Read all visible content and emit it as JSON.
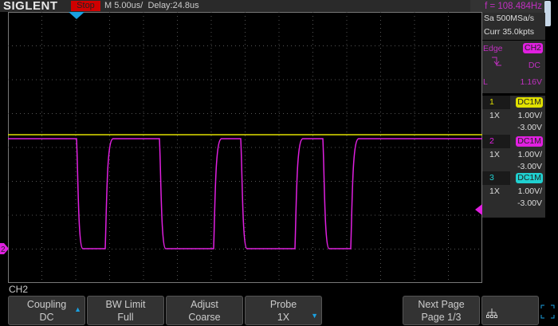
{
  "header": {
    "logo": "SIGLENT",
    "run_state": "Stop",
    "timebase": "M 5.00us/",
    "delay": "Delay:24.8us"
  },
  "measure": {
    "frequency": "f = 108.484Hz"
  },
  "acquire": {
    "sample_rate": "Sa 500MSa/s",
    "memory": "Curr 35.0kpts"
  },
  "trigger": {
    "type": "Edge",
    "source": "CH2",
    "slope_icon": "falling-edge-icon",
    "coupling": "DC",
    "level_label": "L",
    "level": "1.16V"
  },
  "channels": [
    {
      "num": "1",
      "coupling": "DC1M",
      "probe": "1X",
      "scale": "1.00V/",
      "offset": "-3.00V",
      "color": "#e0e000"
    },
    {
      "num": "2",
      "coupling": "DC1M",
      "probe": "1X",
      "scale": "1.00V/",
      "offset": "-3.00V",
      "color": "#e020e0"
    },
    {
      "num": "3",
      "coupling": "DC1M",
      "probe": "1X",
      "scale": "1.00V/",
      "offset": "-3.00V",
      "color": "#20d0d0"
    }
  ],
  "menu": {
    "title": "CH2",
    "buttons": [
      {
        "top": "Coupling",
        "bottom": "DC"
      },
      {
        "top": "BW Limit",
        "bottom": "Full"
      },
      {
        "top": "Adjust",
        "bottom": "Coarse"
      },
      {
        "top": "Probe",
        "bottom": "1X"
      },
      {
        "top": "Next Page",
        "bottom": "Page 1/3"
      }
    ]
  }
}
